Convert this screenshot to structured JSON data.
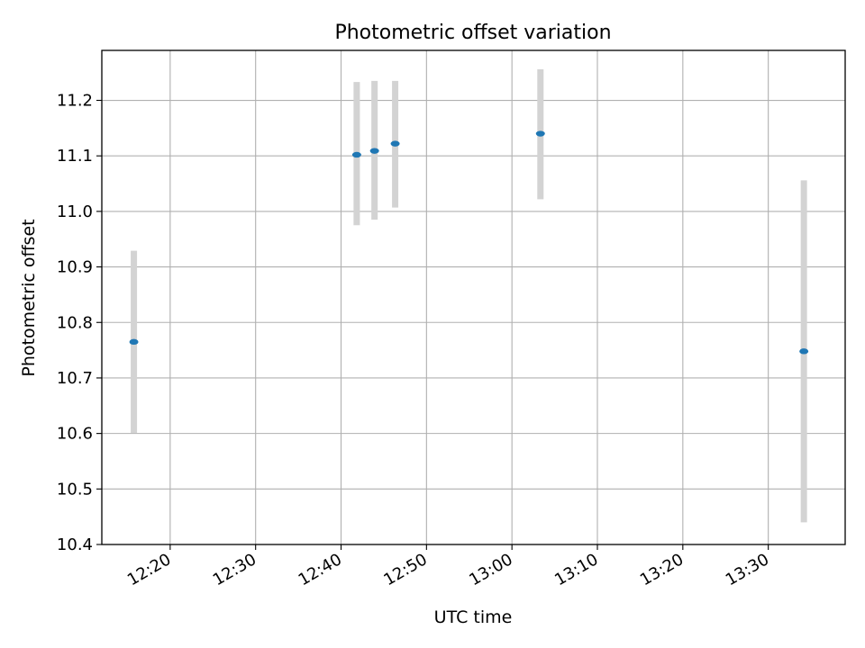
{
  "chart_data": {
    "type": "scatter",
    "title": "Photometric offset variation",
    "xlabel": "UTC time",
    "ylabel": "Photometric offset",
    "x_axis_type": "time",
    "xlim": [
      "12:12",
      "13:39"
    ],
    "ylim": [
      10.4,
      11.29
    ],
    "x_ticks": [
      "12:20",
      "12:30",
      "12:40",
      "12:50",
      "13:00",
      "13:10",
      "13:20",
      "13:30"
    ],
    "y_ticks": [
      10.4,
      10.5,
      10.6,
      10.7,
      10.8,
      10.9,
      11.0,
      11.1,
      11.2
    ],
    "grid": true,
    "legend": "none",
    "series": [
      {
        "marker_color": "#1f77b4",
        "errorbar_color": "#d3d3d3",
        "points": [
          {
            "x": "12:15:45",
            "y": 10.765,
            "y_low": 10.601,
            "y_high": 10.929
          },
          {
            "x": "12:41:50",
            "y": 11.102,
            "y_low": 10.975,
            "y_high": 11.233
          },
          {
            "x": "12:43:55",
            "y": 11.109,
            "y_low": 10.985,
            "y_high": 11.235
          },
          {
            "x": "12:46:20",
            "y": 11.122,
            "y_low": 11.007,
            "y_high": 11.235
          },
          {
            "x": "13:03:20",
            "y": 11.14,
            "y_low": 11.022,
            "y_high": 11.256
          },
          {
            "x": "13:34:10",
            "y": 10.748,
            "y_low": 10.44,
            "y_high": 11.056
          }
        ]
      }
    ]
  }
}
